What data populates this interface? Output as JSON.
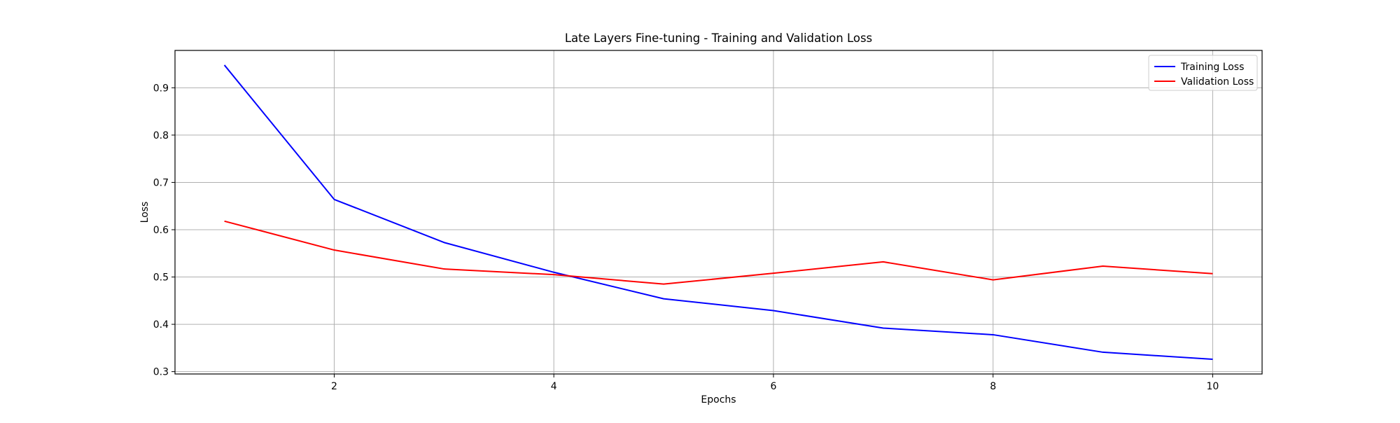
{
  "chart_data": {
    "type": "line",
    "title": "Late Layers Fine-tuning - Training and Validation Loss",
    "xlabel": "Epochs",
    "ylabel": "Loss",
    "xlim": [
      0.55,
      10.45
    ],
    "ylim": [
      0.295,
      0.979
    ],
    "xticks": [
      2,
      4,
      6,
      8,
      10
    ],
    "xtick_labels": [
      "2",
      "4",
      "6",
      "8",
      "10"
    ],
    "yticks": [
      0.3,
      0.4,
      0.5,
      0.6,
      0.7,
      0.8,
      0.9
    ],
    "ytick_labels": [
      "0.3",
      "0.4",
      "0.5",
      "0.6",
      "0.7",
      "0.8",
      "0.9"
    ],
    "grid": true,
    "legend_position": "top-right",
    "x": [
      1,
      2,
      3,
      4,
      5,
      6,
      7,
      8,
      9,
      10
    ],
    "series": [
      {
        "name": "Training Loss",
        "color": "#0000ff",
        "values": [
          0.948,
          0.664,
          0.573,
          0.51,
          0.454,
          0.429,
          0.392,
          0.378,
          0.341,
          0.326
        ]
      },
      {
        "name": "Validation Loss",
        "color": "#ff0000",
        "values": [
          0.618,
          0.557,
          0.517,
          0.505,
          0.485,
          0.508,
          0.532,
          0.494,
          0.523,
          0.507
        ]
      }
    ]
  }
}
